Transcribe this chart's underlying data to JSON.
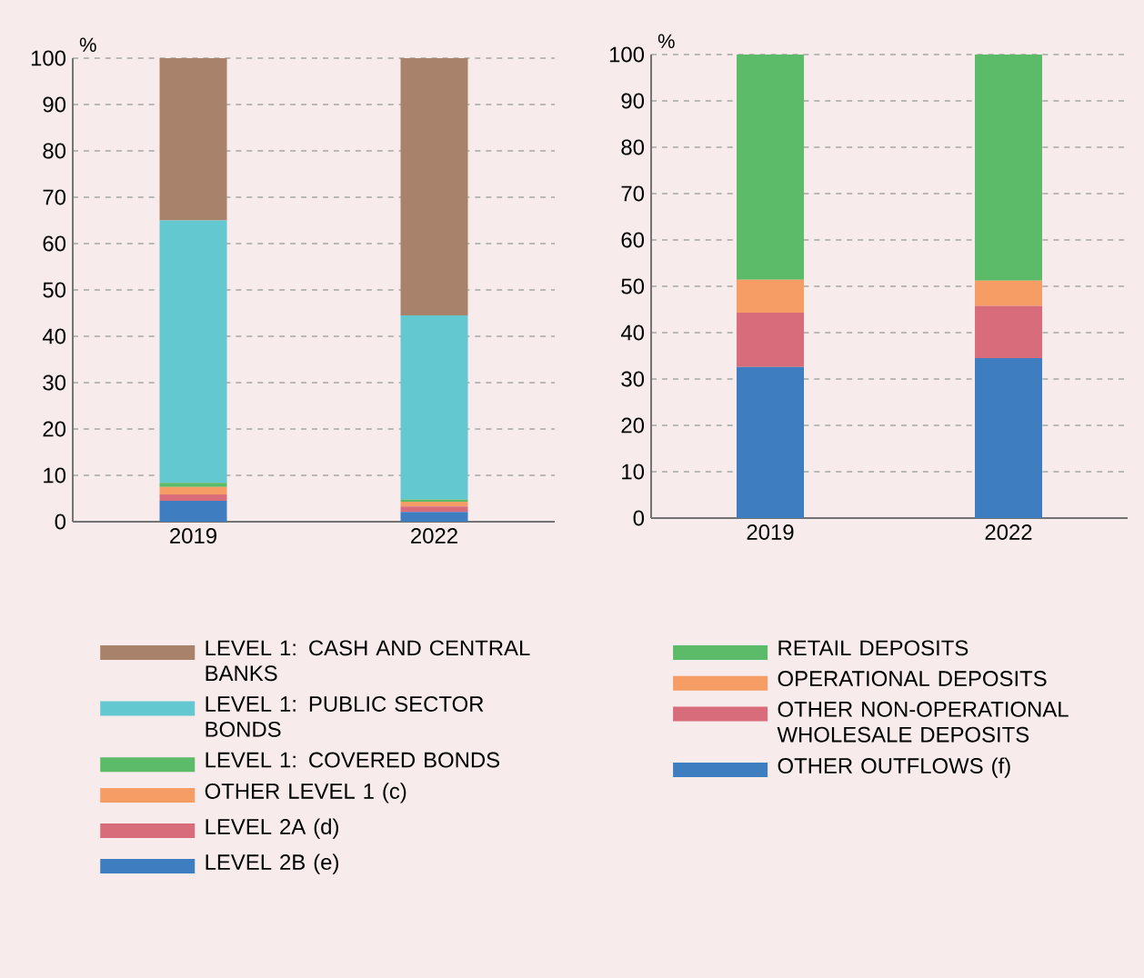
{
  "chart_data": [
    {
      "type": "bar",
      "stacked": true,
      "categories": [
        "2019",
        "2022"
      ],
      "ylabel": "%",
      "ylim": [
        0,
        100
      ],
      "yticks": [
        0,
        10,
        20,
        30,
        40,
        50,
        60,
        70,
        80,
        90,
        100
      ],
      "grid": "y",
      "legend": "bottom",
      "series": [
        {
          "name": "LEVEL 2B (e)",
          "color": "#3e7dc0",
          "values": [
            4.5,
            2.1
          ]
        },
        {
          "name": "LEVEL 2A (d)",
          "color": "#d96c7a",
          "values": [
            1.4,
            1.2
          ]
        },
        {
          "name": "OTHER LEVEL 1 (c)",
          "color": "#f59d64",
          "values": [
            1.6,
            1.0
          ]
        },
        {
          "name": "LEVEL 1: COVERED BONDS",
          "color": "#5bbb68",
          "values": [
            0.9,
            0.5
          ]
        },
        {
          "name": "LEVEL 1: PUBLIC SECTOR BONDS",
          "color": "#63c8d0",
          "values": [
            56.6,
            39.7
          ]
        },
        {
          "name": "LEVEL 1: CASH AND CENTRAL BANKS",
          "color": "#a8826b",
          "values": [
            35.0,
            55.5
          ]
        }
      ]
    },
    {
      "type": "bar",
      "stacked": true,
      "categories": [
        "2019",
        "2022"
      ],
      "ylabel": "%",
      "ylim": [
        0,
        100
      ],
      "yticks": [
        0,
        10,
        20,
        30,
        40,
        50,
        60,
        70,
        80,
        90,
        100
      ],
      "grid": "y",
      "legend": "bottom",
      "series": [
        {
          "name": "OTHER OUTFLOWS (f)",
          "color": "#3e7dc0",
          "values": [
            32.6,
            34.5
          ]
        },
        {
          "name": "OTHER NON-OPERATIONAL WHOLESALE DEPOSITS",
          "color": "#d96c7a",
          "values": [
            11.7,
            11.3
          ]
        },
        {
          "name": "OPERATIONAL DEPOSITS",
          "color": "#f59d64",
          "values": [
            7.1,
            5.4
          ]
        },
        {
          "name": "RETAIL DEPOSITS",
          "color": "#5bbb68",
          "values": [
            48.6,
            48.8
          ]
        }
      ]
    }
  ]
}
